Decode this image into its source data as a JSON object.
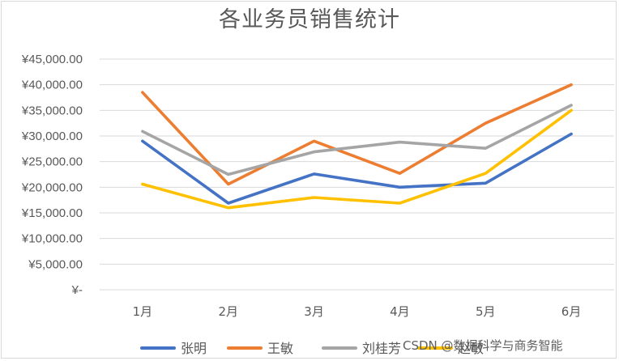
{
  "chart_data": {
    "type": "line",
    "title": "各业务员销售统计",
    "categories": [
      "1月",
      "2月",
      "3月",
      "4月",
      "5月",
      "6月"
    ],
    "ylim": [
      0,
      45000
    ],
    "yticks": [
      {
        "value": 0,
        "label": "¥-"
      },
      {
        "value": 5000,
        "label": "¥5,000.00"
      },
      {
        "value": 10000,
        "label": "¥10,000.00"
      },
      {
        "value": 15000,
        "label": "¥15,000.00"
      },
      {
        "value": 20000,
        "label": "¥20,000.00"
      },
      {
        "value": 25000,
        "label": "¥25,000.00"
      },
      {
        "value": 30000,
        "label": "¥30,000.00"
      },
      {
        "value": 35000,
        "label": "¥35,000.00"
      },
      {
        "value": 40000,
        "label": "¥40,000.00"
      },
      {
        "value": 45000,
        "label": "¥45,000.00"
      }
    ],
    "grid": "horizontal",
    "legend_position": "bottom",
    "series": [
      {
        "name": "张明",
        "color": "#4472C4",
        "values": [
          29000,
          16900,
          22600,
          20000,
          20800,
          30400
        ]
      },
      {
        "name": "王敏",
        "color": "#ED7D31",
        "values": [
          38500,
          20600,
          29000,
          22700,
          32500,
          40000
        ]
      },
      {
        "name": "刘桂芳",
        "color": "#A5A5A5",
        "values": [
          30900,
          22500,
          26900,
          28800,
          27600,
          36000
        ]
      },
      {
        "name": "赵敏",
        "color": "#FFC000",
        "values": [
          20600,
          16000,
          18000,
          16900,
          22700,
          35000
        ]
      }
    ]
  },
  "watermark": "CSDN @数据科学与商务智能"
}
